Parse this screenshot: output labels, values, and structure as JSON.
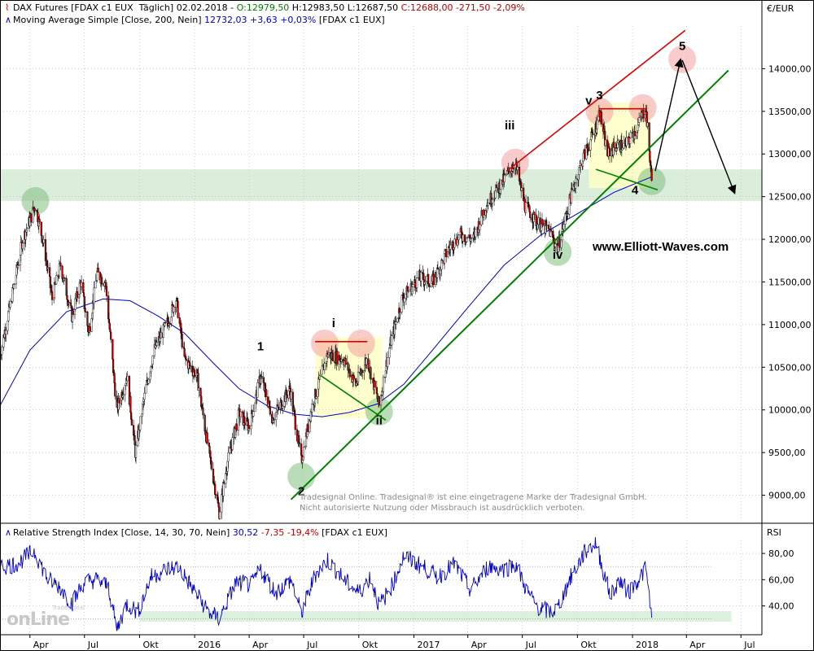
{
  "header": {
    "instrument": "DAX Futures [FDAX c1 EUX  Täglich] 02.02.2018 -",
    "ohlc_o": " O:12979,50",
    "ohlc_h": " H:12983,50 L:12687,50",
    "ohlc_c": " C:12688,00 -271,50 -2,09%",
    "ma_label": "Moving Average Simple [Close, 200, Nein]",
    "ma_values": " 12732,03 +3,63 +0,03%",
    "ma_suffix": " [FDAX c1 EUX]",
    "rsi_label": "Relative Strength Index [Close, 14, 30, 70, Nein]",
    "rsi_v1": " 30,52",
    "rsi_v2": " -7,35 -19,4%",
    "rsi_suffix": " [FDAX c1 EUX]"
  },
  "price_axis_unit": "€/EUR",
  "rsi_axis_unit": "RSI",
  "website": "www.Elliott-Waves.com",
  "watermark": {
    "line1": "Tradesignal Online. Tradesignal® ist eine eingetragene Marke der Tradesignal GmbH.",
    "line2": "Nicht autorisierte Nutzung oder Missbrauch ist ausdrücklich verboten."
  },
  "logo": {
    "big": "onLine",
    "small": "Tradesignal"
  },
  "colors": {
    "candle_up": "#000000",
    "candle_down": "#c00000",
    "ma": "#0000c8",
    "rsi": "#0000c8",
    "trend_green": "#008000",
    "trend_red": "#e00000",
    "zone_green": "#cfe8cf",
    "zone_yellow": "#ffffc0",
    "circle_red": "#f5a0a0",
    "circle_green": "#80c080",
    "grid": "#b4b4b4"
  },
  "chart_data": [
    {
      "type": "candlestick",
      "title": "DAX Futures",
      "ylim": [
        8700,
        14500
      ],
      "y_ticks": [
        9000,
        9500,
        10000,
        10500,
        11000,
        11500,
        12000,
        12500,
        13000,
        13500,
        14000
      ],
      "y_tick_labels": [
        "9000,00",
        "9500,00",
        "10000,00",
        "10500,00",
        "11000,00",
        "11500,00",
        "12000,00",
        "12500,00",
        "13000,00",
        "13500,00",
        "14000,00"
      ],
      "x_tick_labels": [
        "Apr",
        "Jul",
        "Okt",
        "2016",
        "Apr",
        "Jul",
        "Okt",
        "2017",
        "Apr",
        "Jul",
        "Okt",
        "2018",
        "Apr",
        "Jul"
      ],
      "x_ticks": [
        "2015-04-01",
        "2015-07-01",
        "2015-10-01",
        "2016-01-01",
        "2016-04-01",
        "2016-07-01",
        "2016-10-01",
        "2017-01-01",
        "2017-04-01",
        "2017-07-01",
        "2017-10-01",
        "2018-01-01",
        "2018-04-01",
        "2018-07-01"
      ],
      "x_range": [
        "2015-02-10",
        "2018-08-05"
      ],
      "price_path": [
        [
          "2015-02-10",
          10650
        ],
        [
          "2015-03-01",
          11300
        ],
        [
          "2015-03-20",
          12000
        ],
        [
          "2015-04-10",
          12400
        ],
        [
          "2015-04-25",
          11900
        ],
        [
          "2015-05-08",
          11300
        ],
        [
          "2015-05-22",
          11700
        ],
        [
          "2015-06-10",
          11100
        ],
        [
          "2015-06-25",
          11500
        ],
        [
          "2015-07-08",
          10900
        ],
        [
          "2015-07-22",
          11600
        ],
        [
          "2015-08-05",
          11500
        ],
        [
          "2015-08-24",
          10000
        ],
        [
          "2015-09-10",
          10400
        ],
        [
          "2015-09-24",
          9500
        ],
        [
          "2015-10-10",
          10200
        ],
        [
          "2015-10-25",
          10700
        ],
        [
          "2015-11-15",
          11000
        ],
        [
          "2015-12-01",
          11300
        ],
        [
          "2015-12-15",
          10600
        ],
        [
          "2016-01-05",
          10400
        ],
        [
          "2016-01-20",
          9700
        ],
        [
          "2016-02-11",
          8800
        ],
        [
          "2016-02-25",
          9400
        ],
        [
          "2016-03-15",
          9950
        ],
        [
          "2016-04-01",
          9800
        ],
        [
          "2016-04-20",
          10400
        ],
        [
          "2016-05-10",
          9900
        ],
        [
          "2016-06-08",
          10250
        ],
        [
          "2016-06-27",
          9400
        ],
        [
          "2016-07-15",
          10050
        ],
        [
          "2016-08-10",
          10650
        ],
        [
          "2016-09-05",
          10600
        ],
        [
          "2016-09-26",
          10300
        ],
        [
          "2016-10-15",
          10600
        ],
        [
          "2016-11-04",
          10050
        ],
        [
          "2016-11-20",
          10700
        ],
        [
          "2016-12-12",
          11300
        ],
        [
          "2017-01-10",
          11550
        ],
        [
          "2017-02-01",
          11500
        ],
        [
          "2017-03-01",
          11900
        ],
        [
          "2017-03-20",
          12050
        ],
        [
          "2017-04-10",
          12000
        ],
        [
          "2017-05-01",
          12400
        ],
        [
          "2017-05-22",
          12600
        ],
        [
          "2017-06-19",
          12900
        ],
        [
          "2017-07-05",
          12400
        ],
        [
          "2017-07-25",
          12200
        ],
        [
          "2017-08-15",
          12100
        ],
        [
          "2017-08-29",
          11900
        ],
        [
          "2017-09-20",
          12500
        ],
        [
          "2017-10-10",
          12950
        ],
        [
          "2017-10-31",
          13300
        ],
        [
          "2017-11-07",
          13500
        ],
        [
          "2017-11-20",
          13000
        ],
        [
          "2017-12-05",
          13100
        ],
        [
          "2017-12-20",
          13100
        ],
        [
          "2018-01-08",
          13300
        ],
        [
          "2018-01-23",
          13550
        ],
        [
          "2018-02-02",
          12688
        ]
      ],
      "ma_path": [
        [
          "2015-02-10",
          10050
        ],
        [
          "2015-04-01",
          10700
        ],
        [
          "2015-06-01",
          11150
        ],
        [
          "2015-08-01",
          11300
        ],
        [
          "2015-09-15",
          11280
        ],
        [
          "2015-11-01",
          11100
        ],
        [
          "2015-12-15",
          10900
        ],
        [
          "2016-02-01",
          10550
        ],
        [
          "2016-03-15",
          10250
        ],
        [
          "2016-05-01",
          10050
        ],
        [
          "2016-06-15",
          9950
        ],
        [
          "2016-08-01",
          9920
        ],
        [
          "2016-09-15",
          9970
        ],
        [
          "2016-11-01",
          10070
        ],
        [
          "2016-12-15",
          10300
        ],
        [
          "2017-02-01",
          10700
        ],
        [
          "2017-04-01",
          11200
        ],
        [
          "2017-06-01",
          11700
        ],
        [
          "2017-08-01",
          12050
        ],
        [
          "2017-10-01",
          12300
        ],
        [
          "2017-12-01",
          12550
        ],
        [
          "2018-02-02",
          12732
        ]
      ],
      "horizontal_zone": {
        "from": 12450,
        "to": 12820
      },
      "wave_labels": [
        {
          "label": "1",
          "date": "2016-04-20",
          "price": 10700
        },
        {
          "label": "2",
          "date": "2016-06-27",
          "price": 9000
        },
        {
          "label": "i",
          "date": "2016-08-20",
          "price": 10970
        },
        {
          "label": "ii",
          "date": "2016-11-04",
          "price": 9830
        },
        {
          "label": "iii",
          "date": "2017-06-10",
          "price": 13290
        },
        {
          "label": "iv",
          "date": "2017-08-29",
          "price": 11770
        },
        {
          "label": "v",
          "date": "2017-10-20",
          "price": 13580
        },
        {
          "label": "3",
          "date": "2017-11-07",
          "price": 13640
        },
        {
          "label": "4",
          "date": "2018-01-05",
          "price": 12530
        },
        {
          "label": "5",
          "date": "2018-03-25",
          "price": 14220
        }
      ]
    },
    {
      "type": "line",
      "title": "Relative Strength Index",
      "ylim": [
        18,
        90
      ],
      "y_ticks": [
        40,
        60,
        80
      ],
      "y_tick_labels": [
        "40,00",
        "60,00",
        "80,00"
      ],
      "levels": [
        30,
        70
      ],
      "path": [
        [
          "2015-02-10",
          70
        ],
        [
          "2015-03-10",
          72
        ],
        [
          "2015-04-08",
          82
        ],
        [
          "2015-05-01",
          60
        ],
        [
          "2015-05-20",
          55
        ],
        [
          "2015-06-10",
          42
        ],
        [
          "2015-06-30",
          58
        ],
        [
          "2015-07-20",
          60
        ],
        [
          "2015-08-10",
          55
        ],
        [
          "2015-08-24",
          22
        ],
        [
          "2015-09-10",
          42
        ],
        [
          "2015-09-28",
          35
        ],
        [
          "2015-10-20",
          62
        ],
        [
          "2015-11-15",
          68
        ],
        [
          "2015-12-05",
          70
        ],
        [
          "2016-01-05",
          48
        ],
        [
          "2016-01-25",
          35
        ],
        [
          "2016-02-11",
          30
        ],
        [
          "2016-03-10",
          58
        ],
        [
          "2016-04-05",
          56
        ],
        [
          "2016-04-20",
          68
        ],
        [
          "2016-05-15",
          50
        ],
        [
          "2016-06-10",
          60
        ],
        [
          "2016-06-27",
          34
        ],
        [
          "2016-07-20",
          64
        ],
        [
          "2016-08-10",
          75
        ],
        [
          "2016-09-10",
          58
        ],
        [
          "2016-10-01",
          50
        ],
        [
          "2016-10-20",
          62
        ],
        [
          "2016-11-04",
          40
        ],
        [
          "2016-11-25",
          55
        ],
        [
          "2016-12-15",
          78
        ],
        [
          "2017-01-15",
          70
        ],
        [
          "2017-02-10",
          62
        ],
        [
          "2017-03-10",
          72
        ],
        [
          "2017-04-05",
          52
        ],
        [
          "2017-05-05",
          70
        ],
        [
          "2017-06-01",
          68
        ],
        [
          "2017-06-20",
          72
        ],
        [
          "2017-07-10",
          50
        ],
        [
          "2017-07-25",
          40
        ],
        [
          "2017-08-15",
          35
        ],
        [
          "2017-08-29",
          38
        ],
        [
          "2017-09-20",
          62
        ],
        [
          "2017-10-15",
          82
        ],
        [
          "2017-11-01",
          88
        ],
        [
          "2017-11-10",
          72
        ],
        [
          "2017-11-25",
          48
        ],
        [
          "2017-12-10",
          60
        ],
        [
          "2017-12-25",
          50
        ],
        [
          "2018-01-10",
          60
        ],
        [
          "2018-01-23",
          68
        ],
        [
          "2018-02-02",
          31
        ]
      ]
    }
  ]
}
